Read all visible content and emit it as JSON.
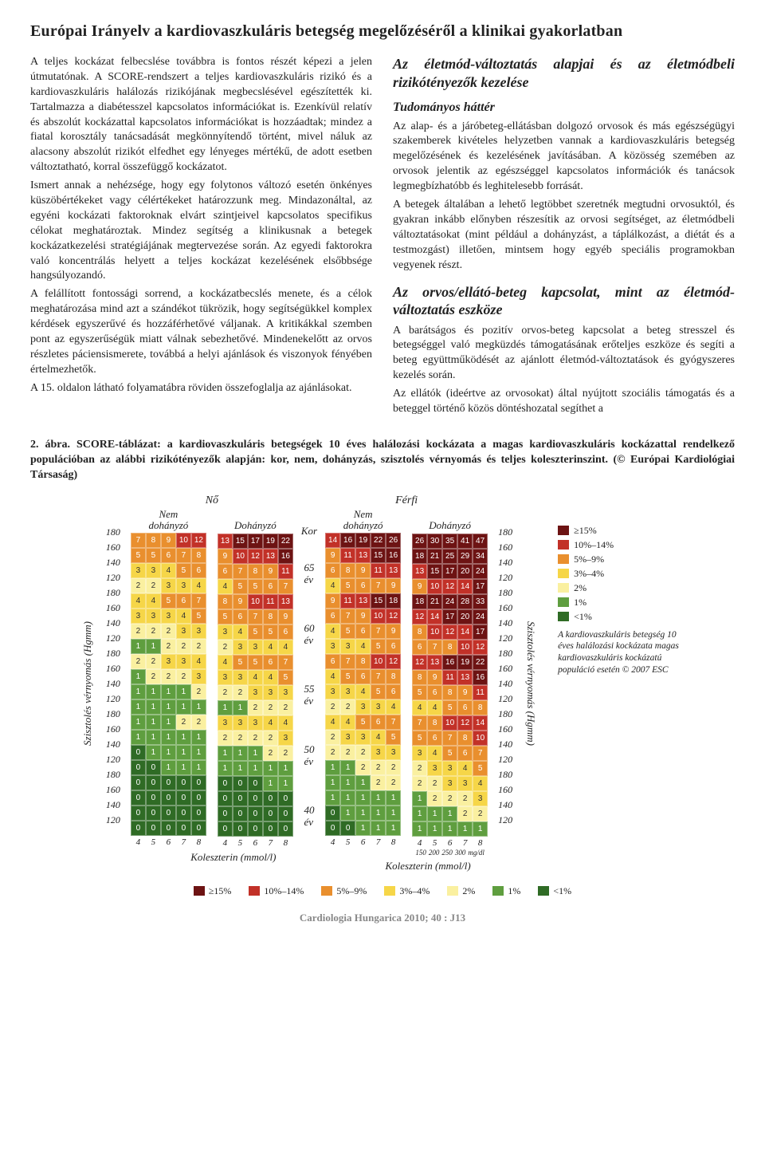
{
  "colors": {
    "darkred": "#6d1313",
    "red": "#c23128",
    "orange": "#e98f2e",
    "yellow": "#f6d648",
    "lightyellow": "#faf0a0",
    "green": "#5f9e3f",
    "darkgreen": "#2f6b25"
  },
  "title": "Európai Irányelv a kardiovaszkuláris betegség megelőzéséről a klinikai gyakorlatban",
  "left_col": {
    "p1": "A teljes kockázat felbecslése továbbra is fontos részét képezi a jelen útmutatónak. A SCORE-rendszert a teljes kardiovaszkuláris rizikó és a kardiovaszkuláris halálozás rizikójának megbecslésével egészítették ki. Tartalmazza a diabétesszel kapcsolatos információkat is. Ezenkívül relatív és abszolút kockázattal kapcsolatos információkat is hozzáadtak; mindez a fiatal korosztály tanácsadását megkönnyítendő történt, mivel náluk az alacsony abszolút rizikót elfedhet egy lényeges mértékű, de adott esetben változtatható, korral összefüggő kockázatot.",
    "p2": "Ismert annak a nehézsége, hogy egy folytonos változó esetén önkényes küszöbértékeket vagy célértékeket határozzunk meg. Mindazonáltal, az egyéni kockázati faktoroknak elvárt szintjeivel kapcsolatos specifikus célokat meghatároztak. Mindez segítség a klinikusnak a betegek kockázatkezelési stratégiájának megtervezése során. Az egyedi faktorokra való koncentrálás helyett a teljes kockázat kezelésének elsőbbsége hangsúlyozandó.",
    "p3": "A felállított fontossági sorrend, a kockázatbecslés menete, és a célok meghatározása mind azt a szándékot tükrözik, hogy segítségükkel komplex kérdések egyszerűvé és hozzáférhetővé váljanak. A kritikákkal szemben pont az egyszerűségük miatt válnak sebezhetővé. Mindenekelőtt az orvos részletes páciensismerete, továbbá a helyi ajánlások és viszonyok fényében értelmezhetők.",
    "p4": "A 15. oldalon látható folyamatábra röviden összefoglalja az ajánlásokat."
  },
  "right_col": {
    "h2a": "Az életmód-változtatás alapjai és az életmódbeli rizikótényezők kezelése",
    "h3a": "Tudományos háttér",
    "pa": "Az alap- és a járóbeteg-ellátásban dolgozó orvosok és más egészségügyi szakemberek kivételes helyzetben vannak a kardiovaszkuláris betegség megelőzésének és kezelésének javításában. A közösség szemében az orvosok jelentik az egészséggel kapcsolatos információk és tanácsok legmegbízhatóbb és leghitelesebb forrását.",
    "pb": "A betegek általában a lehető legtöbbet szeretnék megtudni orvosuktól, és gyakran inkább előnyben részesítik az orvosi segítséget, az életmódbeli változtatásokat (mint például a dohányzást, a táplálkozást, a diétát és a testmozgást) illetően, mintsem hogy egyéb speciális programokban vegyenek részt.",
    "h2b": "Az orvos/ellátó-beteg kapcsolat, mint az életmód-változtatás eszköze",
    "pc": "A barátságos és pozitív orvos-beteg kapcsolat a beteg stresszel és betegséggel való megküzdés támogatásának erőteljes eszköze és segíti a beteg együttműködését az ajánlott életmód-változtatások és gyógyszeres kezelés során.",
    "pd": "Az ellátók (ideértve az orvosokat) által nyújtott szociális támogatás és a beteggel történő közös döntéshozatal segíthet a"
  },
  "fig_caption": "2. ábra. SCORE-táblázat: a kardiovaszkuláris betegségek 10 éves halálozási kockázata a magas kardiovaszkuláris kockázattal rendelkező populációban az alábbi rizikótényezők alapján: kor, nem, dohányzás, szisztolés vérnyomás és teljes koleszterinszint. (© Európai Kardiológiai Társaság)",
  "chart": {
    "ylabel": "Szisztolés vérnyomás (Hgmm)",
    "genders": [
      "Nő",
      "Férfi"
    ],
    "smoke": [
      "Nem dohányzó",
      "Dohányzó"
    ],
    "kor": "Kor",
    "ages": [
      [
        "65",
        "év"
      ],
      [
        "60",
        "év"
      ],
      [
        "55",
        "év"
      ],
      [
        "50",
        "év"
      ],
      [
        "40",
        "év"
      ]
    ],
    "bp": [
      "180",
      "160",
      "140",
      "120"
    ],
    "chol": [
      "4",
      "5",
      "6",
      "7",
      "8"
    ],
    "mgdl": [
      "150",
      "200",
      "250",
      "300",
      "mg/dl"
    ],
    "xlabel": "Koleszterin (mmol/l)",
    "grids": {
      "f_ns": [
        [
          [
            7,
            8,
            9,
            10,
            12
          ],
          [
            5,
            5,
            6,
            7,
            8
          ],
          [
            3,
            3,
            4,
            5,
            6
          ],
          [
            2,
            2,
            3,
            3,
            4
          ]
        ],
        [
          [
            4,
            4,
            5,
            6,
            7
          ],
          [
            3,
            3,
            3,
            4,
            5
          ],
          [
            2,
            2,
            2,
            3,
            3
          ],
          [
            1,
            1,
            2,
            2,
            2
          ]
        ],
        [
          [
            2,
            2,
            3,
            3,
            4
          ],
          [
            1,
            2,
            2,
            2,
            3
          ],
          [
            1,
            1,
            1,
            1,
            2
          ],
          [
            1,
            1,
            1,
            1,
            1
          ]
        ],
        [
          [
            1,
            1,
            1,
            2,
            2
          ],
          [
            1,
            1,
            1,
            1,
            1
          ],
          [
            0,
            1,
            1,
            1,
            1
          ],
          [
            0,
            0,
            1,
            1,
            1
          ]
        ],
        [
          [
            0,
            0,
            0,
            0,
            0
          ],
          [
            0,
            0,
            0,
            0,
            0
          ],
          [
            0,
            0,
            0,
            0,
            0
          ],
          [
            0,
            0,
            0,
            0,
            0
          ]
        ]
      ],
      "f_s": [
        [
          [
            13,
            15,
            17,
            19,
            22
          ],
          [
            9,
            10,
            12,
            13,
            16
          ],
          [
            6,
            7,
            8,
            9,
            11
          ],
          [
            4,
            5,
            5,
            6,
            7
          ]
        ],
        [
          [
            8,
            9,
            10,
            11,
            13
          ],
          [
            5,
            6,
            7,
            8,
            9
          ],
          [
            3,
            4,
            5,
            5,
            6
          ],
          [
            2,
            3,
            3,
            4,
            4
          ]
        ],
        [
          [
            4,
            5,
            5,
            6,
            7
          ],
          [
            3,
            3,
            4,
            4,
            5
          ],
          [
            2,
            2,
            3,
            3,
            3
          ],
          [
            1,
            1,
            2,
            2,
            2
          ]
        ],
        [
          [
            3,
            3,
            3,
            4,
            4
          ],
          [
            2,
            2,
            2,
            2,
            3
          ],
          [
            1,
            1,
            1,
            2,
            2
          ],
          [
            1,
            1,
            1,
            1,
            1
          ]
        ],
        [
          [
            0,
            0,
            0,
            1,
            1
          ],
          [
            0,
            0,
            0,
            0,
            0
          ],
          [
            0,
            0,
            0,
            0,
            0
          ],
          [
            0,
            0,
            0,
            0,
            0
          ]
        ]
      ],
      "m_ns": [
        [
          [
            14,
            16,
            19,
            22,
            26
          ],
          [
            9,
            11,
            13,
            15,
            16
          ],
          [
            6,
            8,
            9,
            11,
            13
          ],
          [
            4,
            5,
            6,
            7,
            9
          ]
        ],
        [
          [
            9,
            11,
            13,
            15,
            18
          ],
          [
            6,
            7,
            9,
            10,
            12
          ],
          [
            4,
            5,
            6,
            7,
            9
          ],
          [
            3,
            3,
            4,
            5,
            6
          ]
        ],
        [
          [
            6,
            7,
            8,
            10,
            12
          ],
          [
            4,
            5,
            6,
            7,
            8
          ],
          [
            3,
            3,
            4,
            5,
            6
          ],
          [
            2,
            2,
            3,
            3,
            4
          ]
        ],
        [
          [
            4,
            4,
            5,
            6,
            7
          ],
          [
            2,
            3,
            3,
            4,
            5
          ],
          [
            2,
            2,
            2,
            3,
            3
          ],
          [
            1,
            1,
            2,
            2,
            2
          ]
        ],
        [
          [
            1,
            1,
            1,
            2,
            2
          ],
          [
            1,
            1,
            1,
            1,
            1
          ],
          [
            0,
            1,
            1,
            1,
            1
          ],
          [
            0,
            0,
            1,
            1,
            1
          ]
        ]
      ],
      "m_s": [
        [
          [
            26,
            30,
            35,
            41,
            47
          ],
          [
            18,
            21,
            25,
            29,
            34
          ],
          [
            13,
            15,
            17,
            20,
            24
          ],
          [
            9,
            10,
            12,
            14,
            17
          ]
        ],
        [
          [
            18,
            21,
            24,
            28,
            33
          ],
          [
            12,
            14,
            17,
            20,
            24
          ],
          [
            8,
            10,
            12,
            14,
            17
          ],
          [
            6,
            7,
            8,
            10,
            12
          ]
        ],
        [
          [
            12,
            13,
            16,
            19,
            22
          ],
          [
            8,
            9,
            11,
            13,
            16
          ],
          [
            5,
            6,
            8,
            9,
            11
          ],
          [
            4,
            4,
            5,
            6,
            8
          ]
        ],
        [
          [
            7,
            8,
            10,
            12,
            14
          ],
          [
            5,
            6,
            7,
            8,
            10
          ],
          [
            3,
            4,
            5,
            6,
            7
          ],
          [
            2,
            3,
            3,
            4,
            5
          ]
        ],
        [
          [
            2,
            2,
            3,
            3,
            4
          ],
          [
            1,
            2,
            2,
            2,
            3
          ],
          [
            1,
            1,
            1,
            2,
            2
          ],
          [
            1,
            1,
            1,
            1,
            1
          ]
        ]
      ]
    }
  },
  "legend": [
    {
      "c": "darkred",
      "t": "≥15%"
    },
    {
      "c": "red",
      "t": "10%–14%"
    },
    {
      "c": "orange",
      "t": "5%–9%"
    },
    {
      "c": "yellow",
      "t": "3%–4%"
    },
    {
      "c": "lightyellow",
      "t": "2%"
    },
    {
      "c": "green",
      "t": "1%"
    },
    {
      "c": "darkgreen",
      "t": "<1%"
    }
  ],
  "legend_note": "A kardiovaszkuláris betegség 10 éves halálozási kockázata magas kardiovaszkuláris kockázatú populáció esetén © 2007 ESC",
  "footer": "Cardiologia Hungarica 2010; 40 : J13"
}
